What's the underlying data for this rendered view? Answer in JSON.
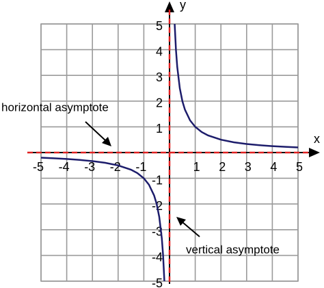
{
  "chart_data": {
    "type": "line",
    "x": [
      -5,
      -4.5,
      -4,
      -3.5,
      -3,
      -2.5,
      -2,
      -1.5,
      -1.25,
      -1,
      -0.8,
      -0.6,
      -0.5,
      -0.4,
      -0.3,
      -0.25,
      -0.2,
      0,
      0.2,
      0.25,
      0.3,
      0.4,
      0.5,
      0.6,
      0.8,
      1,
      1.25,
      1.5,
      2,
      2.5,
      3,
      3.5,
      4,
      4.5,
      5
    ],
    "series": [
      {
        "color": "#1c1c6b",
        "values": [
          -0.2,
          -0.222,
          -0.25,
          -0.286,
          -0.333,
          -0.4,
          -0.5,
          -0.667,
          -0.8,
          -1,
          -1.25,
          -1.667,
          -2,
          -2.5,
          -3.333,
          -4,
          -5,
          null,
          5,
          4,
          3.333,
          2.5,
          2,
          1.667,
          1.25,
          1,
          0.8,
          0.667,
          0.5,
          0.4,
          0.333,
          0.286,
          0.25,
          0.222,
          0.2
        ]
      }
    ],
    "xlim": [
      -5,
      5
    ],
    "ylim": [
      -5,
      5
    ],
    "xticks": [
      -5,
      -4,
      -3,
      -2,
      -1,
      1,
      2,
      3,
      4,
      5
    ],
    "yticks": [
      -5,
      -4,
      -3,
      -2,
      -1,
      1,
      2,
      3,
      4,
      5
    ],
    "grid": true,
    "xlabel": "x",
    "ylabel": "y",
    "asymptotes": {
      "color": "#e02020",
      "x": 0,
      "y": 0
    },
    "annotations": [
      "horizontal asymptote",
      "vertical asymptote"
    ]
  }
}
